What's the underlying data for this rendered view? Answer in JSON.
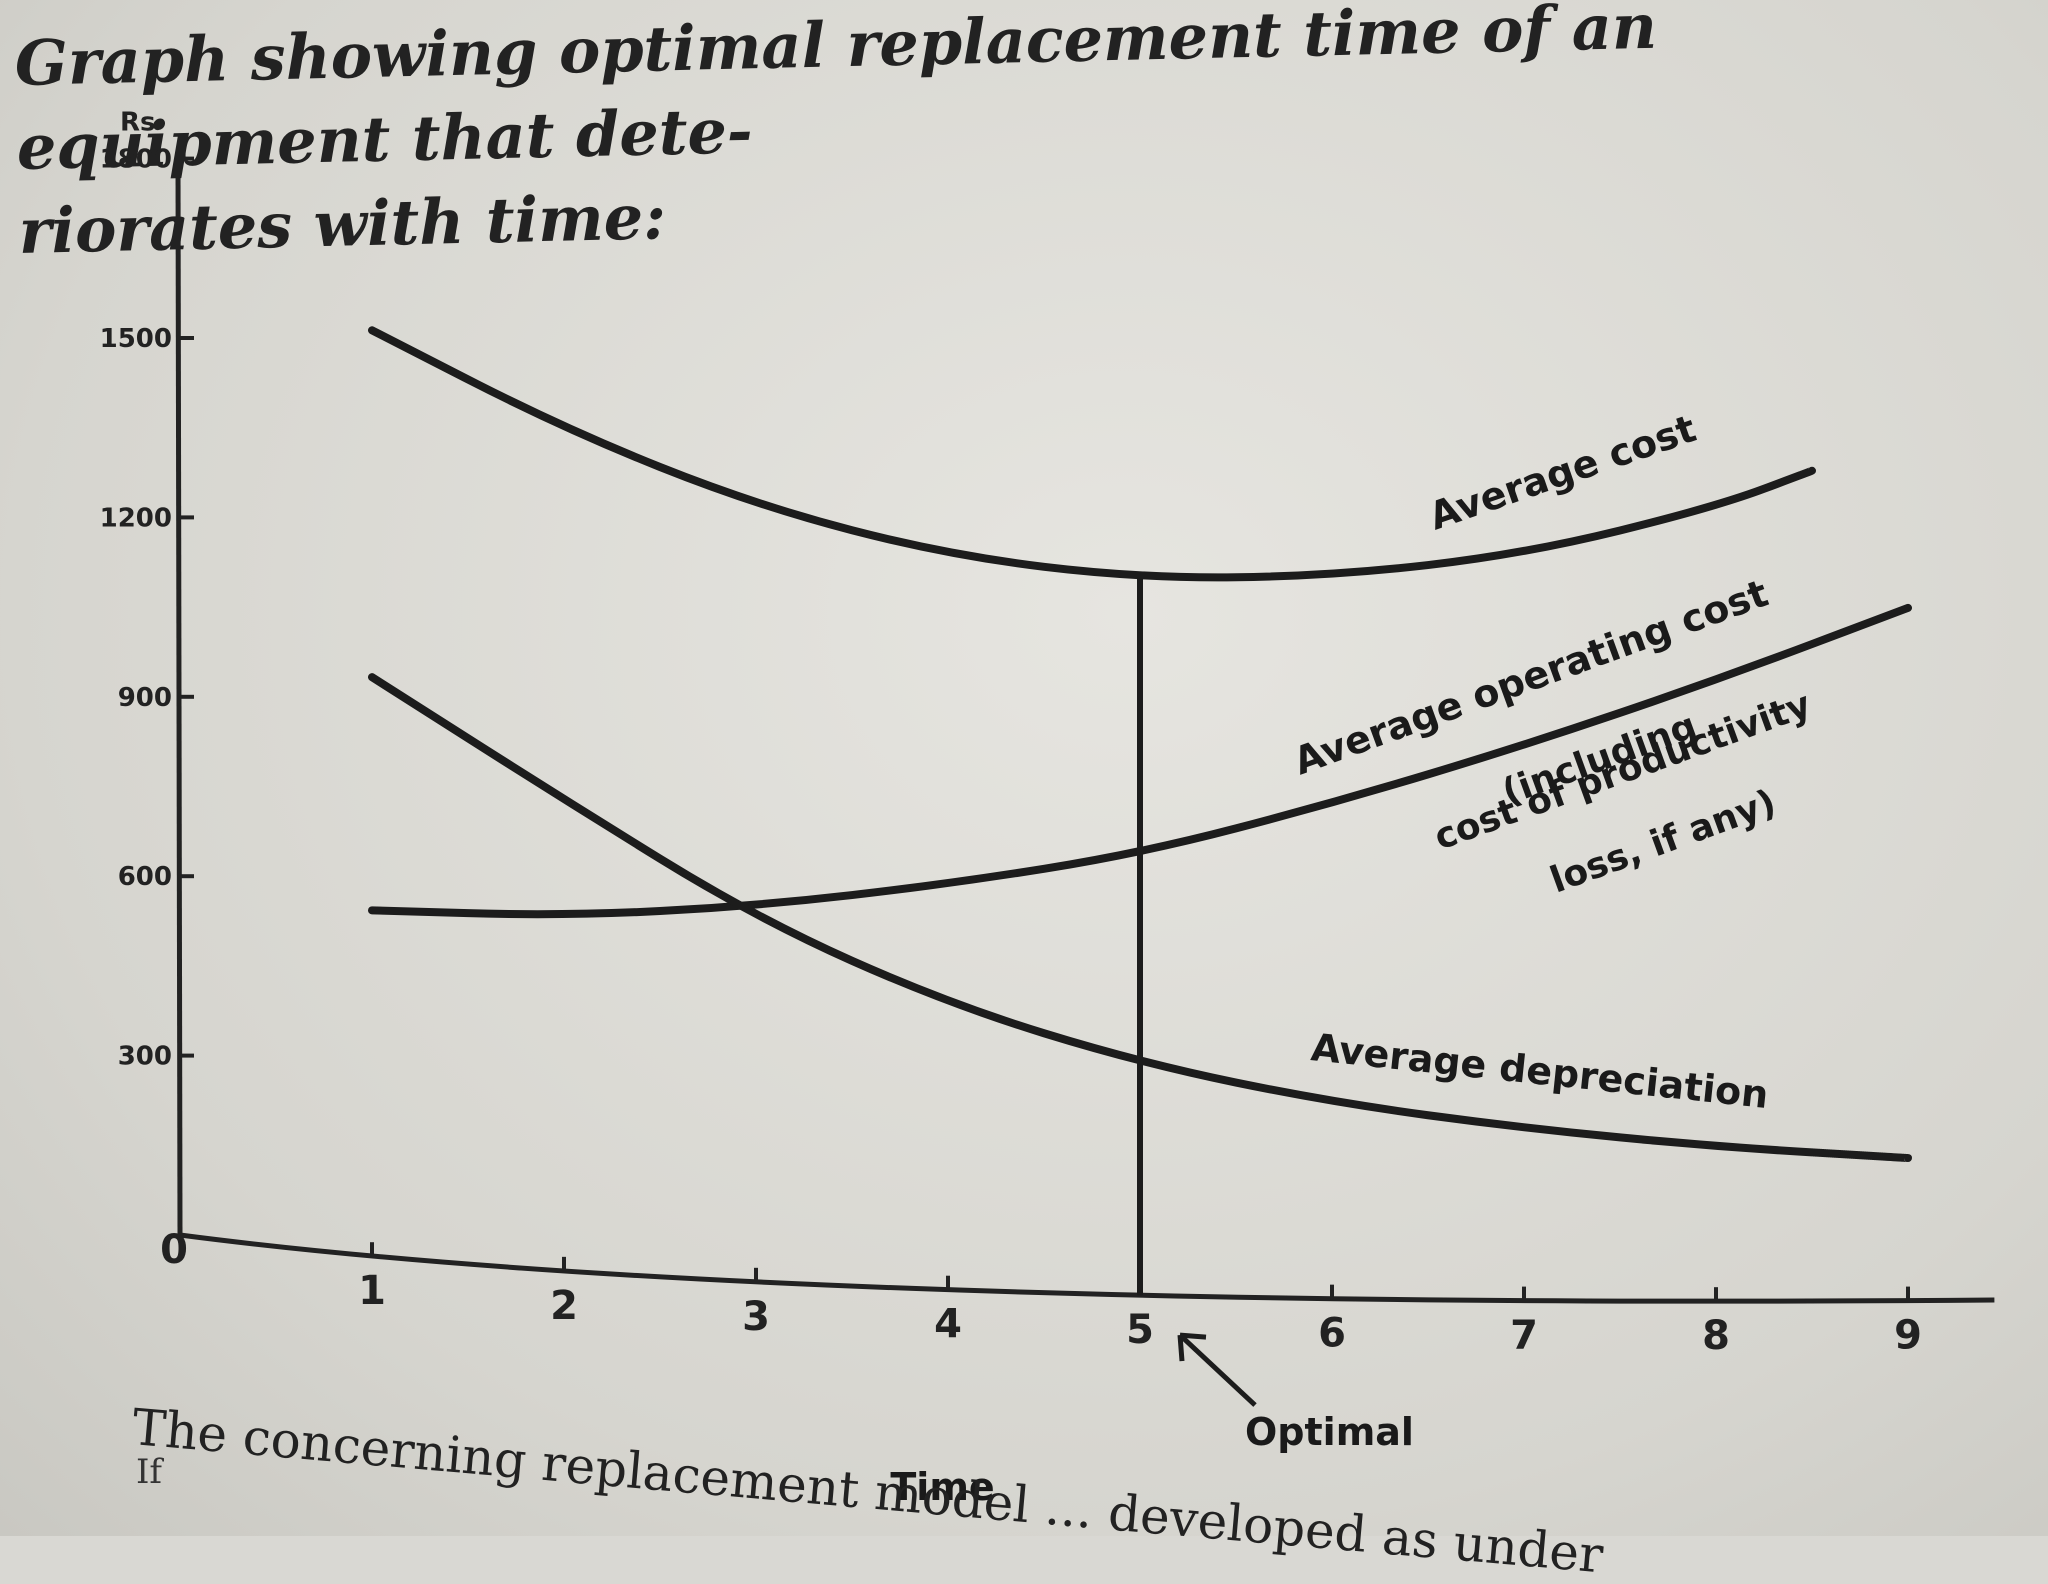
{
  "caption": {
    "line1": "Graph showing optimal replacement time of an equipment that dete-",
    "line2": "riorates with time:"
  },
  "chart_data": {
    "type": "line",
    "ylabel": "Rs",
    "xlabel": "Time",
    "xlim": [
      0,
      9
    ],
    "ylim": [
      0,
      1800
    ],
    "yticks": [
      "1800",
      "1500",
      "1200",
      "900",
      "600",
      "300"
    ],
    "xticks": [
      "0",
      "1",
      "2",
      "3",
      "4",
      "5",
      "6",
      "7",
      "8",
      "9"
    ],
    "grid": false,
    "series": [
      {
        "name": "Average cost",
        "x": [
          1,
          2,
          3,
          4,
          5,
          6,
          7,
          8,
          8.5
        ],
        "values": [
          1540,
          1400,
          1290,
          1220,
          1190,
          1200,
          1240,
          1320,
          1380
        ]
      },
      {
        "name": "Average operating cost",
        "note": [
          "(including",
          "cost of productivity",
          "loss, if any)"
        ],
        "x": [
          1,
          2,
          3,
          4,
          5,
          6,
          7,
          8,
          9
        ],
        "values": [
          570,
          585,
          620,
          670,
          730,
          820,
          920,
          1030,
          1150
        ]
      },
      {
        "name": "Average depreciation",
        "x": [
          1,
          2,
          3,
          4,
          5,
          6,
          7,
          8,
          9
        ],
        "values": [
          960,
          780,
          600,
          470,
          380,
          320,
          280,
          250,
          230
        ]
      }
    ],
    "annotations": {
      "optimal_x": 5,
      "optimal_label": "Optimal"
    }
  },
  "bottom": {
    "text": "The concerning replacement model ... developed as under",
    "if": "If"
  }
}
